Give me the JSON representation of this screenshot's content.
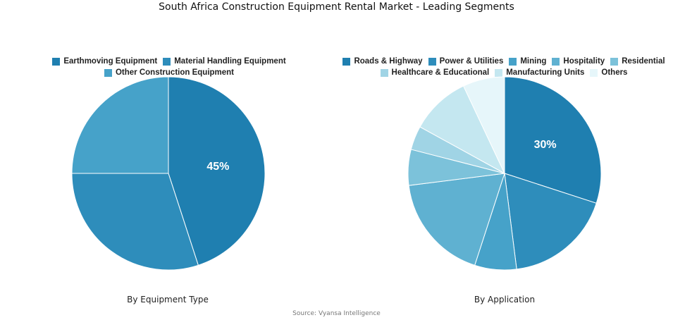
{
  "title": "South Africa Construction Equipment Rental Market - Leading Segments",
  "source": "Source: Vyansa Intelligence",
  "chart_data": [
    {
      "type": "pie",
      "caption": "By Equipment Type",
      "categories": [
        "Earthmoving Equipment",
        "Material Handling Equipment",
        "Other Construction Equipment"
      ],
      "values": [
        45,
        30,
        25
      ],
      "colors": [
        "#1f7fb0",
        "#2e8dbb",
        "#46a2c9"
      ],
      "data_labels": [
        "45%",
        "",
        ""
      ],
      "legend_position": "top"
    },
    {
      "type": "pie",
      "caption": "By Application",
      "categories": [
        "Roads & Highway",
        "Power & Utilities",
        "Mining",
        "Hospitality",
        "Residential",
        "Healthcare & Educational",
        "Manufacturing Units",
        "Others"
      ],
      "values": [
        30,
        18,
        7,
        18,
        6,
        4,
        10,
        7
      ],
      "colors": [
        "#1f7fb0",
        "#2e8dbb",
        "#46a2c9",
        "#5fb1d1",
        "#7cc2da",
        "#a0d4e5",
        "#c4e7f0",
        "#e6f6fa"
      ],
      "data_labels": [
        "30%",
        "",
        "",
        "",
        "",
        "",
        "",
        ""
      ],
      "legend_position": "top"
    }
  ]
}
